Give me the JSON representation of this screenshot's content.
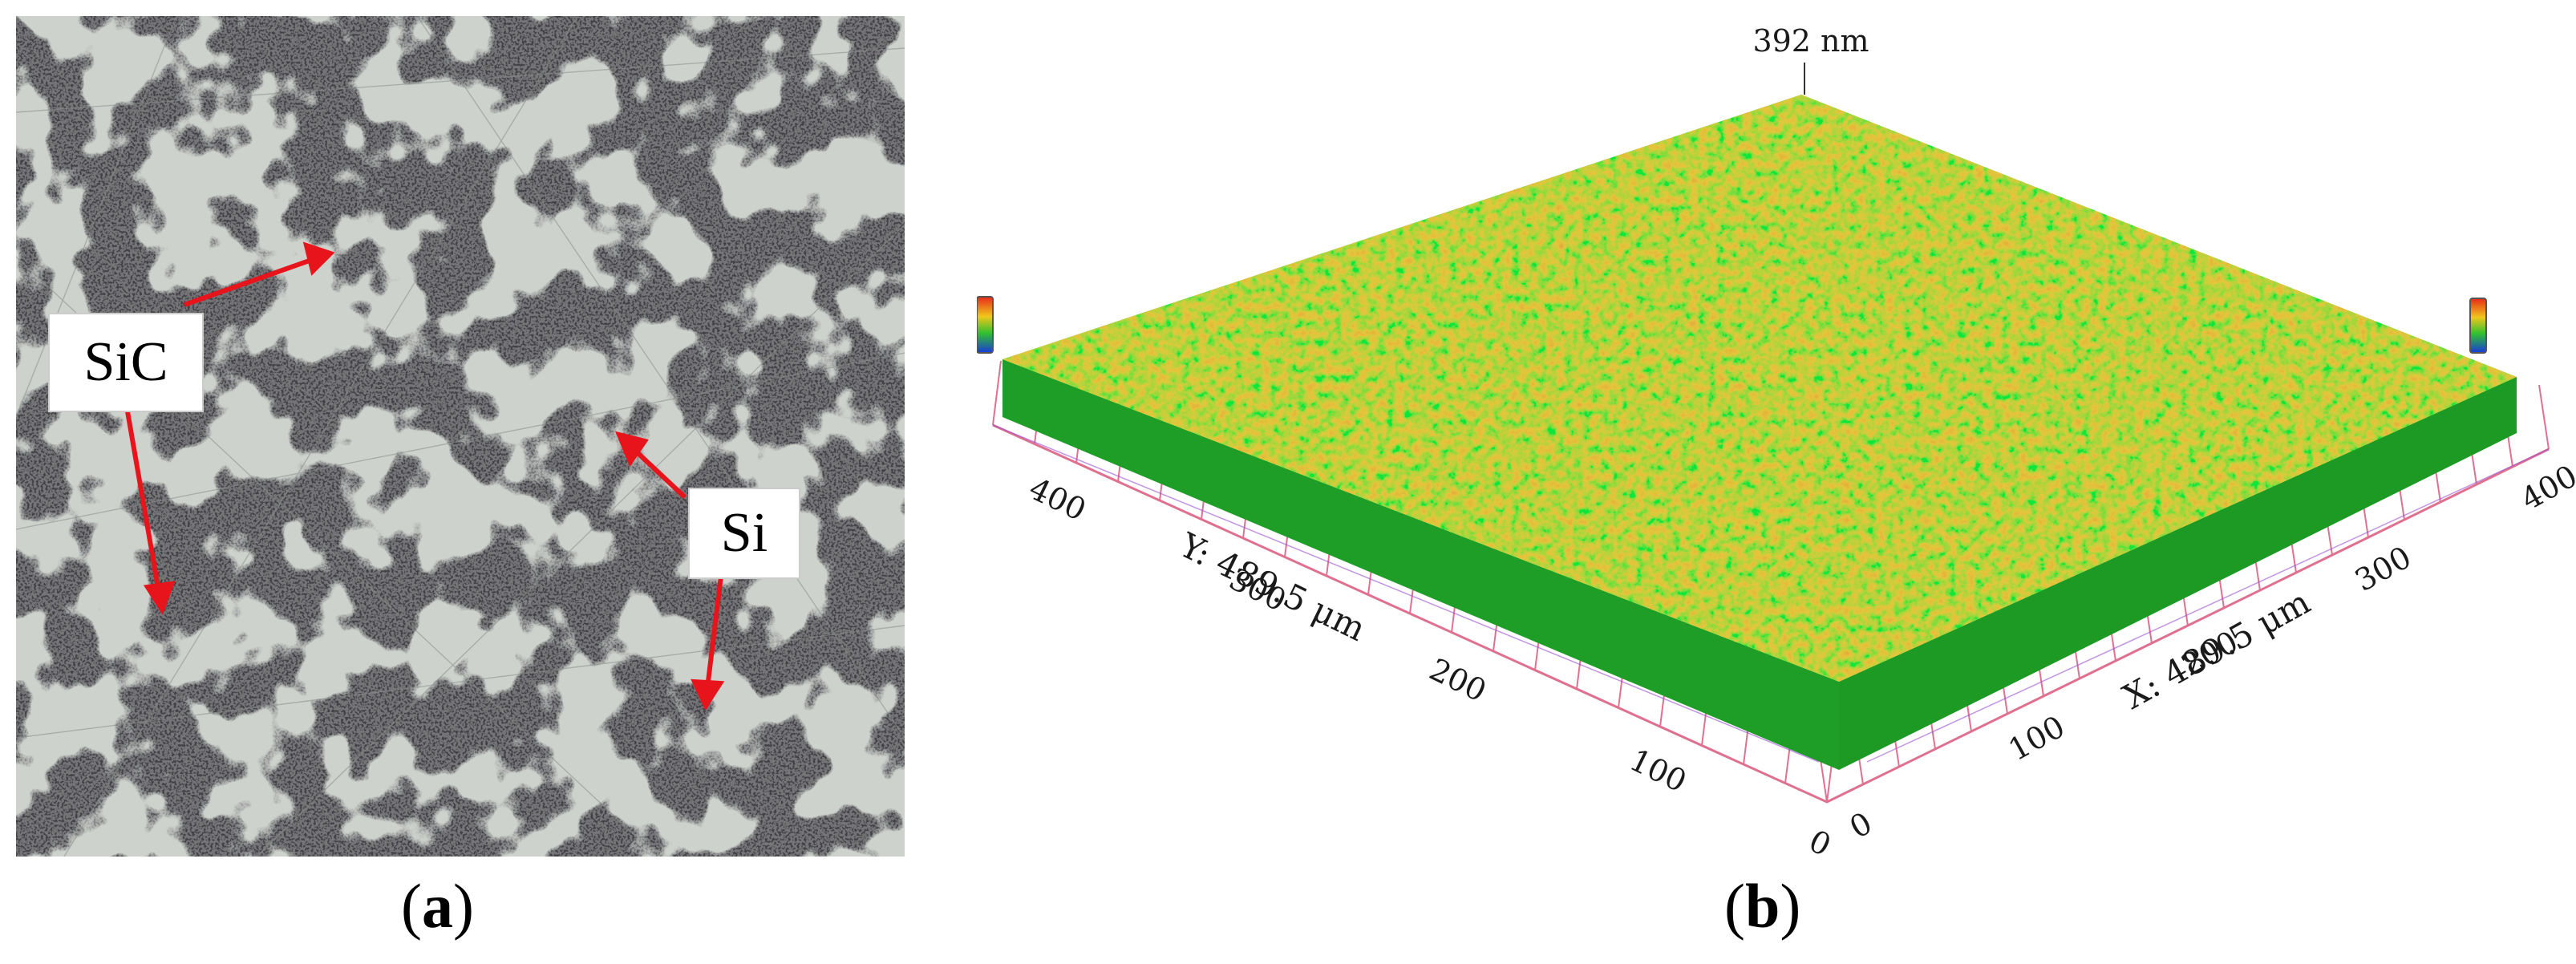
{
  "panel_a": {
    "labels": {
      "sic": "SiC",
      "si": "Si"
    },
    "arrow_color": "#e8141c"
  },
  "panel_b": {
    "peak_label": "392 nm",
    "y_axis_title": "Y: 489.5 μm",
    "x_axis_title": "X: 489.5 μm",
    "y_ticks": [
      "400",
      "300",
      "200",
      "100",
      "0"
    ],
    "x_ticks": [
      "0",
      "100",
      "200",
      "300",
      "400"
    ],
    "surface_colors": [
      "#19b024",
      "#5fd21a",
      "#c9d81c",
      "#f09a1a",
      "#e8421a"
    ],
    "grid_color": "#e07090"
  },
  "captions": {
    "a_open": "(",
    "a_letter": "a",
    "a_close": ")",
    "b_open": "(",
    "b_letter": "b",
    "b_close": ")"
  }
}
